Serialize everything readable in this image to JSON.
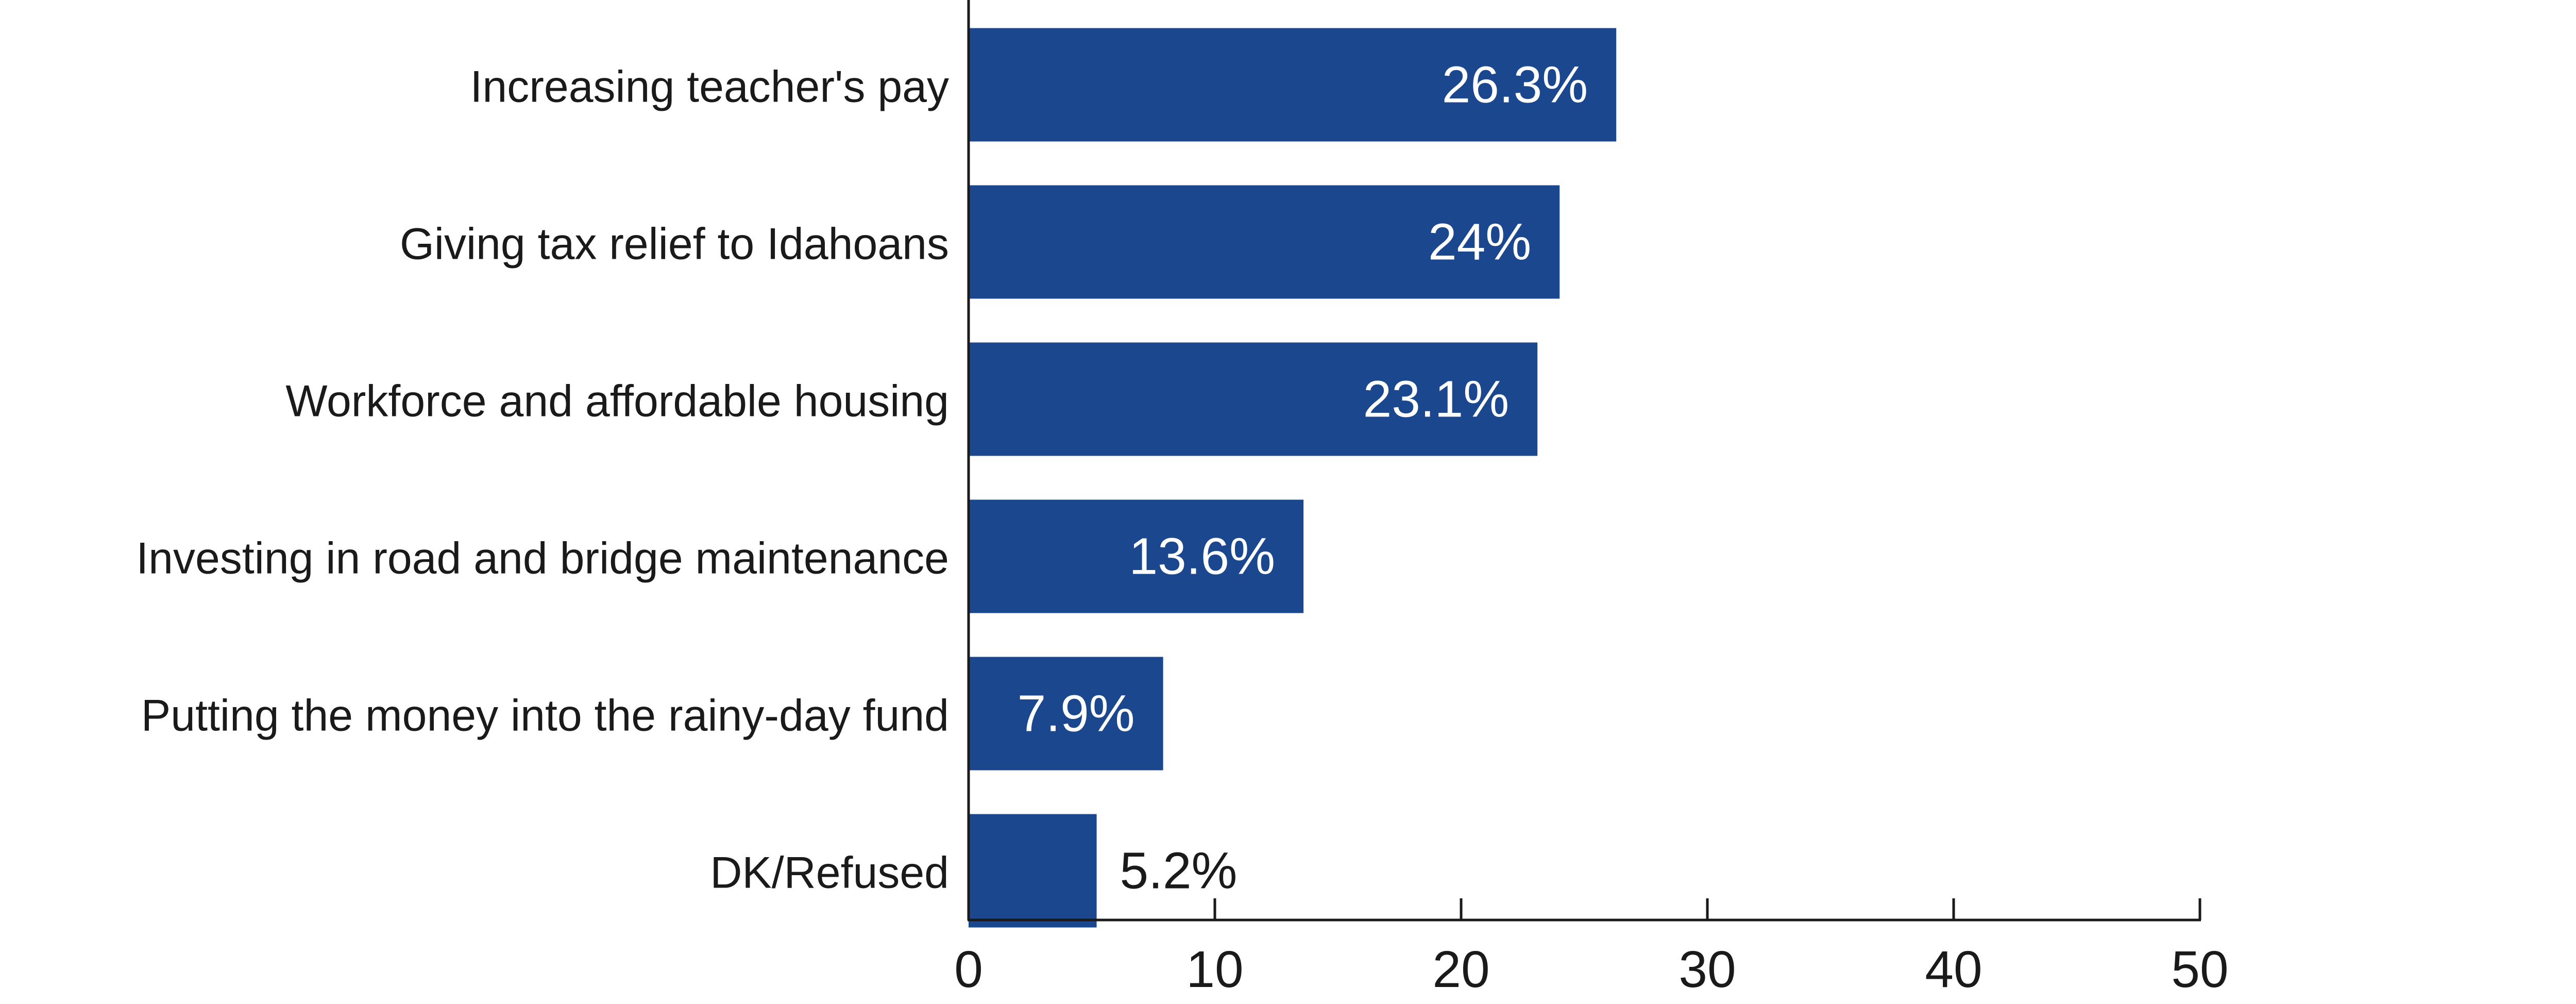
{
  "chart_data": {
    "type": "bar",
    "orientation": "horizontal",
    "categories": [
      "Increasing teacher's pay",
      "Giving tax relief to Idahoans",
      "Workforce and affordable housing",
      "Investing in road and bridge maintenance",
      "Putting the money into the rainy-day fund",
      "DK/Refused"
    ],
    "values": [
      26.3,
      24,
      23.1,
      13.6,
      7.9,
      5.2
    ],
    "value_labels": [
      "26.3%",
      "24%",
      "23.1%",
      "13.6%",
      "7.9%",
      "5.2%"
    ],
    "xlim": [
      0,
      50
    ],
    "x_ticks": [
      0,
      10,
      20,
      30,
      40,
      50
    ],
    "x_tick_labels": [
      "0",
      "10",
      "20",
      "30",
      "40",
      "50"
    ],
    "title": "",
    "xlabel": "",
    "ylabel": "",
    "grid": false,
    "legend": "none",
    "colors": {
      "bar": "#1a478e",
      "label_inside": "#ffffff",
      "label_outside": "#1a1a1a",
      "axis": "#1a1a1a"
    }
  }
}
